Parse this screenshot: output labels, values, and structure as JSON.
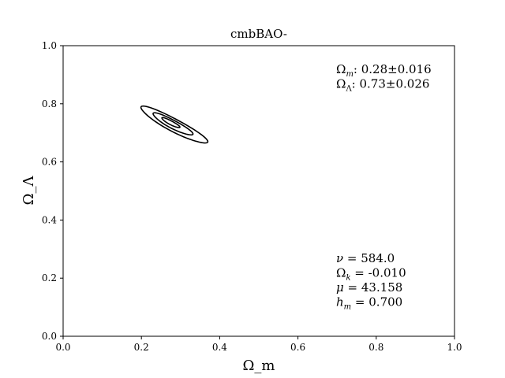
{
  "chart_data": {
    "type": "contour",
    "title": "cmbBAO-",
    "xlabel": "Ω_m",
    "ylabel": "Ω_Λ",
    "xlim": [
      0.0,
      1.0
    ],
    "ylim": [
      0.0,
      1.0
    ],
    "xticks": [
      "0.0",
      "0.2",
      "0.4",
      "0.6",
      "0.8",
      "1.0"
    ],
    "yticks": [
      "0.0",
      "0.2",
      "0.4",
      "0.6",
      "0.8",
      "1.0"
    ],
    "grid": false,
    "center": {
      "x": 0.28,
      "y": 0.73
    },
    "contours": [
      {
        "level": "inner",
        "center_x": 0.275,
        "center_y": 0.735,
        "semi_major": 0.028,
        "semi_minor": 0.006,
        "angle_deg": -36
      },
      {
        "level": "middle",
        "center_x": 0.28,
        "center_y": 0.73,
        "semi_major": 0.062,
        "semi_minor": 0.013,
        "angle_deg": -36
      },
      {
        "level": "outer",
        "center_x": 0.283,
        "center_y": 0.727,
        "semi_major": 0.104,
        "semi_minor": 0.02,
        "angle_deg": -36
      }
    ],
    "color": "#000000",
    "annotations_top": [
      {
        "symbol": "Ω",
        "sub": "m",
        "text": ": 0.28±0.016"
      },
      {
        "symbol": "Ω",
        "sub": "Λ",
        "text": ": 0.73±0.026"
      }
    ],
    "annotations_bottom": [
      {
        "symbol": "ν",
        "sub": "",
        "text": " = 584.0"
      },
      {
        "symbol": "Ω",
        "sub": "k",
        "text": " = -0.010"
      },
      {
        "symbol": "μ",
        "sub": "",
        "text": " = 43.158"
      },
      {
        "symbol": "h",
        "sub": "m",
        "text": " = 0.700"
      }
    ]
  }
}
